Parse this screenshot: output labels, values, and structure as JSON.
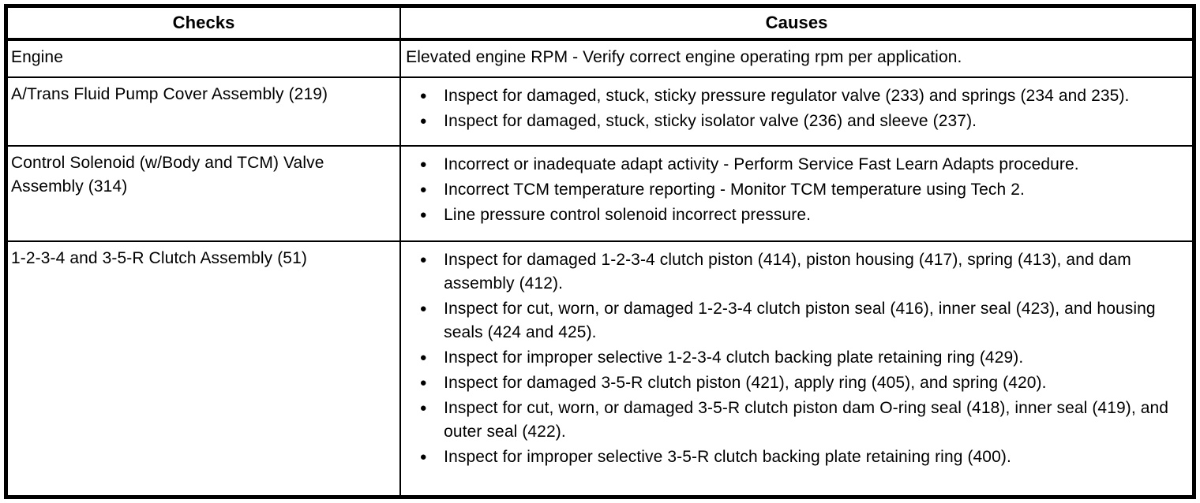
{
  "table": {
    "headers": [
      {
        "label": "Checks"
      },
      {
        "label": "Causes"
      }
    ],
    "bullet_glyph": "●",
    "rows": [
      {
        "check": "Engine",
        "bulleted": false,
        "causes": [
          "Elevated engine RPM - Verify correct engine operating rpm per application."
        ]
      },
      {
        "check": "A/Trans Fluid Pump Cover Assembly (219)",
        "bulleted": true,
        "causes": [
          "Inspect for damaged, stuck, sticky pressure regulator valve (233) and springs (234 and 235).",
          "Inspect for damaged, stuck, sticky isolator valve (236) and sleeve (237)."
        ]
      },
      {
        "check": "Control Solenoid (w/Body and TCM) Valve Assembly (314)",
        "bulleted": true,
        "causes": [
          "Incorrect or inadequate adapt activity - Perform Service Fast Learn Adapts procedure.",
          "Incorrect TCM temperature reporting - Monitor TCM temperature using Tech 2.",
          "Line pressure control solenoid incorrect pressure."
        ]
      },
      {
        "check": "1-2-3-4 and 3-5-R Clutch Assembly (51)",
        "bulleted": true,
        "causes": [
          "Inspect for damaged 1-2-3-4 clutch piston (414), piston housing (417), spring (413), and dam assembly (412).",
          "Inspect for cut, worn, or damaged 1-2-3-4 clutch piston seal (416), inner seal (423), and housing seals (424 and 425).",
          "Inspect for improper selective 1-2-3-4 clutch backing plate retaining ring (429).",
          "Inspect for damaged 3-5-R clutch piston (421), apply ring (405), and spring (420).",
          "Inspect for cut, worn, or damaged 3-5-R clutch piston dam O-ring seal (418), inner seal (419), and outer seal (422).",
          "Inspect for improper selective 3-5-R clutch backing plate retaining ring (400)."
        ]
      }
    ],
    "colors": {
      "border": "#000000",
      "text": "#000000",
      "background": "#ffffff"
    }
  }
}
